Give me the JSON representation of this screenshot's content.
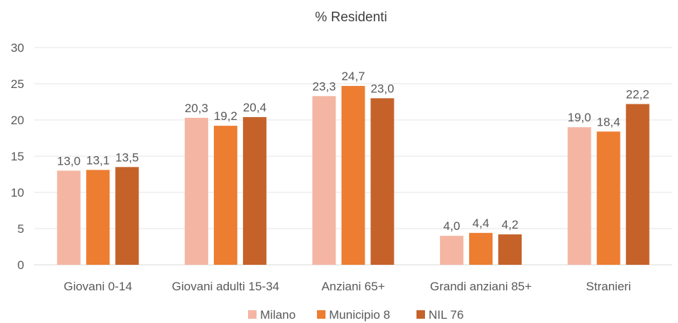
{
  "chart_data": {
    "type": "bar",
    "title": "% Residenti",
    "xlabel": "",
    "ylabel": "",
    "ylim": [
      0,
      30
    ],
    "yticks": [
      "0",
      "5",
      "10",
      "15",
      "20",
      "25",
      "30"
    ],
    "grid": true,
    "legend_position": "bottom",
    "categories": [
      "Giovani 0-14",
      "Giovani adulti 15-34",
      "Anziani 65+",
      "Grandi anziani 85+",
      "Stranieri"
    ],
    "series": [
      {
        "name": "Milano",
        "color": "#F4B6A2",
        "values": [
          13.0,
          20.3,
          23.3,
          4.0,
          19.0
        ],
        "labels": [
          "13,0",
          "20,3",
          "23,3",
          "4,0",
          "19,0"
        ]
      },
      {
        "name": "Municipio 8",
        "color": "#ED7D31",
        "values": [
          13.1,
          19.2,
          24.7,
          4.4,
          18.4
        ],
        "labels": [
          "13,1",
          "19,2",
          "24,7",
          "4,4",
          "18,4"
        ]
      },
      {
        "name": "NIL 76",
        "color": "#C5622A",
        "values": [
          13.5,
          20.4,
          23.0,
          4.2,
          22.2
        ],
        "labels": [
          "13,5",
          "20,4",
          "23,0",
          "4,2",
          "22,2"
        ]
      }
    ]
  }
}
